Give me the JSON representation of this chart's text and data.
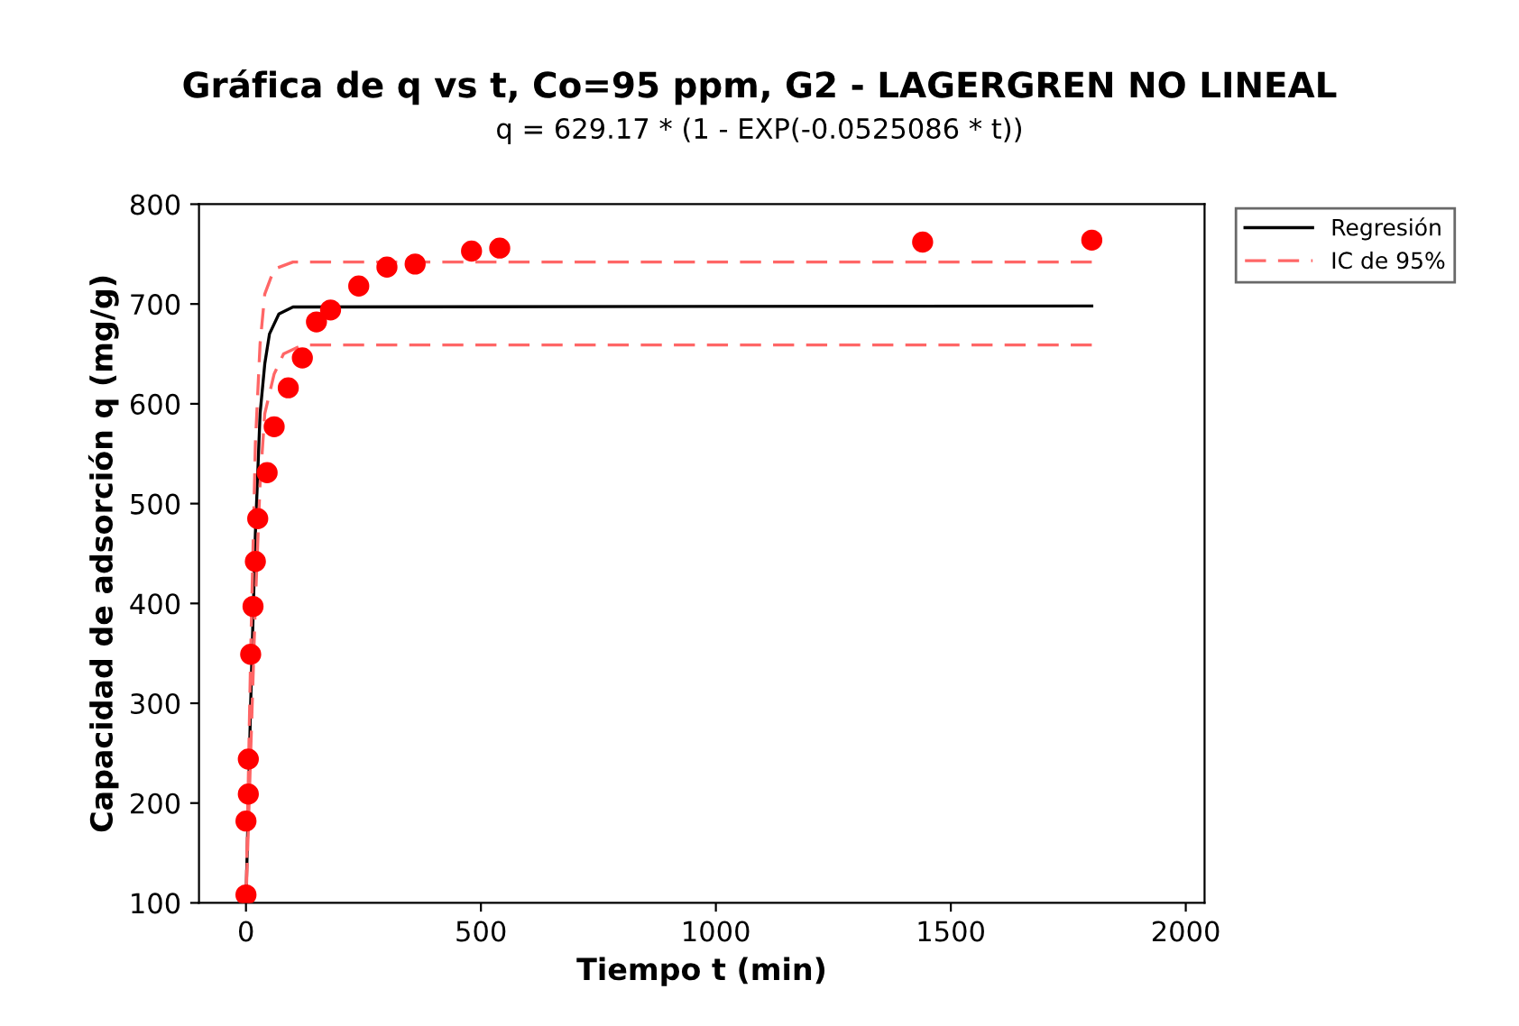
{
  "chart_data": {
    "type": "line",
    "title": "Gráfica de q vs t, Co=95 ppm, G2 - LAGERGREN NO LINEAL",
    "subtitle": "q = 629.17 * (1 - EXP(-0.0525086 * t))",
    "xlabel": "Tiempo t (min)",
    "ylabel": "Capacidad de adsorción q (mg/g)",
    "xlim": [
      -100,
      2040
    ],
    "xticks": [
      0,
      500,
      1000,
      1500,
      2000
    ],
    "ylim": [
      100,
      800
    ],
    "yticks": [
      100,
      200,
      300,
      400,
      500,
      600,
      700,
      800
    ],
    "grid": false,
    "legend": "top right",
    "series": [
      {
        "name": "Regresión",
        "line_style": "solid",
        "color": "#000000",
        "x": [
          0,
          10,
          20,
          30,
          40,
          50,
          70,
          100,
          1800
        ],
        "values": [
          100,
          300,
          470,
          590,
          640,
          670,
          690,
          697,
          698
        ]
      },
      {
        "name": "IC de 95%",
        "line_style": "dashed",
        "color": "#ff6666",
        "x": [
          0,
          10,
          20,
          30,
          40,
          60,
          100,
          1800
        ],
        "values": [
          100,
          350,
          560,
          660,
          710,
          735,
          742,
          742
        ]
      },
      {
        "line_style": "dashed",
        "color": "#ff6666",
        "x": [
          0,
          10,
          20,
          30,
          40,
          60,
          80,
          120,
          1800
        ],
        "values": [
          100,
          250,
          400,
          520,
          590,
          630,
          650,
          659,
          659
        ]
      },
      {
        "type": "scatter",
        "marker": "circle",
        "color": "#ff0000",
        "x": [
          0,
          0,
          5,
          5,
          10,
          15,
          20,
          25,
          45,
          60,
          90,
          120,
          150,
          180,
          240,
          300,
          360,
          480,
          540,
          1440,
          1800
        ],
        "values": [
          108,
          182,
          209,
          244,
          349,
          397,
          442,
          485,
          531,
          577,
          616,
          646,
          682,
          694,
          718,
          737,
          740,
          753,
          756,
          762,
          764
        ]
      }
    ]
  }
}
